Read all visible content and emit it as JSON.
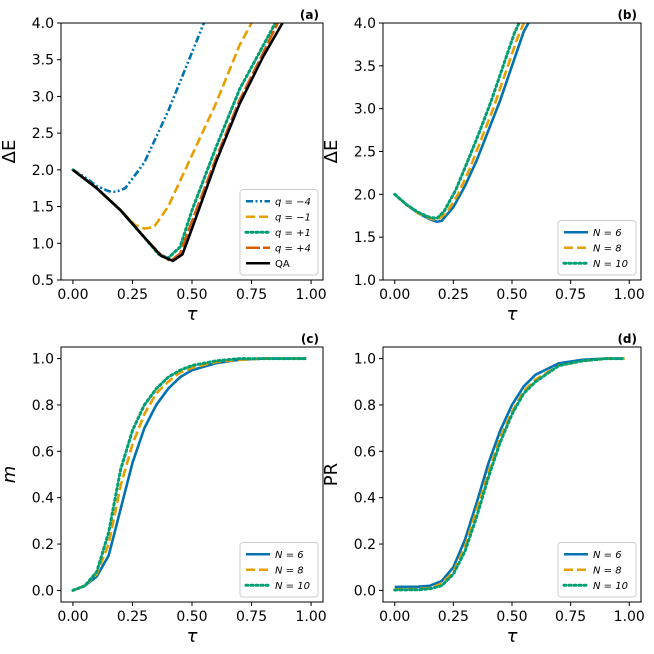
{
  "figure": {
    "colors": {
      "blue": "#0072b2",
      "orange": "#e69f00",
      "green": "#009e73",
      "vermillion": "#d55e00",
      "black": "#000000"
    }
  },
  "chart_data": [
    {
      "panel": "(a)",
      "type": "line",
      "xlabel": "τ",
      "ylabel": "ΔE",
      "xlim": [
        -0.05,
        1.05
      ],
      "ylim": [
        0.5,
        4.0
      ],
      "xticks": [
        "0.00",
        "0.25",
        "0.50",
        "0.75",
        "1.00"
      ],
      "yticks": [
        "0.5",
        "1.0",
        "1.5",
        "2.0",
        "2.5",
        "3.0",
        "3.5",
        "4.0"
      ],
      "legend_position": "lower-right",
      "series": [
        {
          "name": "q = −4",
          "color": "#0072b2",
          "dash": "dashdotdot",
          "x": [
            0.0,
            0.05,
            0.1,
            0.15,
            0.18,
            0.22,
            0.3,
            0.4,
            0.5,
            0.55
          ],
          "y": [
            2.0,
            1.9,
            1.78,
            1.71,
            1.7,
            1.75,
            2.1,
            2.8,
            3.6,
            4.0
          ]
        },
        {
          "name": "q = −1",
          "color": "#e69f00",
          "dash": "dashed",
          "x": [
            0.0,
            0.1,
            0.2,
            0.26,
            0.3,
            0.34,
            0.4,
            0.5,
            0.6,
            0.7,
            0.75
          ],
          "y": [
            2.0,
            1.75,
            1.45,
            1.25,
            1.2,
            1.22,
            1.5,
            2.2,
            2.9,
            3.7,
            4.0
          ]
        },
        {
          "name": "q = +1",
          "color": "#009e73",
          "dash": "dotted",
          "x": [
            0.0,
            0.1,
            0.2,
            0.3,
            0.36,
            0.4,
            0.45,
            0.5,
            0.6,
            0.7,
            0.8,
            0.85
          ],
          "y": [
            2.0,
            1.75,
            1.45,
            1.08,
            0.85,
            0.8,
            0.95,
            1.45,
            2.3,
            3.1,
            3.7,
            4.0
          ]
        },
        {
          "name": "q = +4",
          "color": "#d55e00",
          "dash": "longdash",
          "x": [
            0.0,
            0.1,
            0.2,
            0.3,
            0.37,
            0.41,
            0.45,
            0.5,
            0.6,
            0.7,
            0.8,
            0.86
          ],
          "y": [
            2.0,
            1.75,
            1.45,
            1.08,
            0.84,
            0.76,
            0.86,
            1.3,
            2.15,
            2.95,
            3.6,
            4.0
          ]
        },
        {
          "name": "QA",
          "color": "#000000",
          "dash": "solid",
          "x": [
            0.0,
            0.1,
            0.2,
            0.3,
            0.37,
            0.42,
            0.46,
            0.5,
            0.6,
            0.7,
            0.8,
            0.88
          ],
          "y": [
            2.0,
            1.75,
            1.45,
            1.08,
            0.83,
            0.76,
            0.85,
            1.2,
            2.1,
            2.9,
            3.55,
            4.0
          ]
        }
      ]
    },
    {
      "panel": "(b)",
      "type": "line",
      "xlabel": "τ",
      "ylabel": "ΔE",
      "xlim": [
        -0.05,
        1.05
      ],
      "ylim": [
        1.0,
        4.0
      ],
      "xticks": [
        "0.00",
        "0.25",
        "0.50",
        "0.75",
        "1.00"
      ],
      "yticks": [
        "1.0",
        "1.5",
        "2.0",
        "2.5",
        "3.0",
        "3.5",
        "4.0"
      ],
      "legend_position": "lower-right",
      "series": [
        {
          "name": "N = 6",
          "color": "#0072b2",
          "dash": "solid",
          "x": [
            0.0,
            0.05,
            0.1,
            0.15,
            0.18,
            0.2,
            0.25,
            0.3,
            0.35,
            0.4,
            0.45,
            0.5,
            0.55,
            0.57
          ],
          "y": [
            2.0,
            1.88,
            1.78,
            1.71,
            1.68,
            1.69,
            1.85,
            2.1,
            2.4,
            2.75,
            3.1,
            3.5,
            3.9,
            4.0
          ]
        },
        {
          "name": "N = 8",
          "color": "#e69f00",
          "dash": "dashed",
          "x": [
            0.0,
            0.05,
            0.1,
            0.15,
            0.18,
            0.22,
            0.27,
            0.32,
            0.37,
            0.42,
            0.47,
            0.52,
            0.55
          ],
          "y": [
            2.0,
            1.88,
            1.78,
            1.72,
            1.7,
            1.78,
            2.0,
            2.3,
            2.65,
            3.0,
            3.4,
            3.8,
            4.0
          ]
        },
        {
          "name": "N = 10",
          "color": "#009e73",
          "dash": "dotted",
          "x": [
            0.0,
            0.05,
            0.1,
            0.15,
            0.18,
            0.21,
            0.26,
            0.31,
            0.36,
            0.41,
            0.46,
            0.51,
            0.53
          ],
          "y": [
            2.0,
            1.88,
            1.79,
            1.73,
            1.72,
            1.8,
            2.05,
            2.38,
            2.72,
            3.08,
            3.48,
            3.88,
            4.0
          ]
        }
      ]
    },
    {
      "panel": "(c)",
      "type": "line",
      "xlabel": "τ",
      "ylabel": "m",
      "xlim": [
        -0.05,
        1.05
      ],
      "ylim": [
        -0.05,
        1.05
      ],
      "xticks": [
        "0.00",
        "0.25",
        "0.50",
        "0.75",
        "1.00"
      ],
      "yticks": [
        "0.0",
        "0.2",
        "0.4",
        "0.6",
        "0.8",
        "1.0"
      ],
      "legend_position": "lower-right",
      "series": [
        {
          "name": "N = 6",
          "color": "#0072b2",
          "dash": "solid",
          "x": [
            0.0,
            0.05,
            0.1,
            0.15,
            0.2,
            0.25,
            0.3,
            0.35,
            0.4,
            0.45,
            0.5,
            0.6,
            0.7,
            0.8,
            0.9,
            0.98
          ],
          "y": [
            0.0,
            0.02,
            0.06,
            0.15,
            0.35,
            0.55,
            0.7,
            0.8,
            0.87,
            0.92,
            0.95,
            0.98,
            0.995,
            1.0,
            1.0,
            1.0
          ]
        },
        {
          "name": "N = 8",
          "color": "#e69f00",
          "dash": "dashed",
          "x": [
            0.0,
            0.05,
            0.1,
            0.15,
            0.2,
            0.25,
            0.3,
            0.35,
            0.4,
            0.45,
            0.5,
            0.6,
            0.7,
            0.8,
            0.9,
            0.98
          ],
          "y": [
            0.0,
            0.02,
            0.07,
            0.2,
            0.45,
            0.63,
            0.76,
            0.85,
            0.9,
            0.94,
            0.96,
            0.985,
            0.995,
            1.0,
            1.0,
            1.0
          ]
        },
        {
          "name": "N = 10",
          "color": "#009e73",
          "dash": "dotted",
          "x": [
            0.0,
            0.05,
            0.1,
            0.15,
            0.2,
            0.25,
            0.3,
            0.35,
            0.4,
            0.45,
            0.5,
            0.6,
            0.7,
            0.8,
            0.9,
            0.98
          ],
          "y": [
            0.0,
            0.02,
            0.08,
            0.25,
            0.52,
            0.69,
            0.8,
            0.87,
            0.92,
            0.95,
            0.97,
            0.99,
            1.0,
            1.0,
            1.0,
            1.0
          ]
        }
      ]
    },
    {
      "panel": "(d)",
      "type": "line",
      "xlabel": "τ",
      "ylabel": "PR",
      "xlim": [
        -0.05,
        1.05
      ],
      "ylim": [
        -0.05,
        1.05
      ],
      "xticks": [
        "0.00",
        "0.25",
        "0.50",
        "0.75",
        "1.00"
      ],
      "yticks": [
        "0.0",
        "0.2",
        "0.4",
        "0.6",
        "0.8",
        "1.0"
      ],
      "legend_position": "lower-right",
      "series": [
        {
          "name": "N = 6",
          "color": "#0072b2",
          "dash": "solid",
          "x": [
            0.0,
            0.1,
            0.15,
            0.2,
            0.25,
            0.3,
            0.35,
            0.4,
            0.45,
            0.5,
            0.55,
            0.6,
            0.7,
            0.8,
            0.9,
            0.98
          ],
          "y": [
            0.015,
            0.016,
            0.02,
            0.04,
            0.1,
            0.22,
            0.38,
            0.55,
            0.69,
            0.8,
            0.88,
            0.93,
            0.98,
            0.995,
            1.0,
            1.0
          ]
        },
        {
          "name": "N = 8",
          "color": "#e69f00",
          "dash": "dashed",
          "x": [
            0.0,
            0.1,
            0.15,
            0.2,
            0.25,
            0.3,
            0.35,
            0.4,
            0.45,
            0.5,
            0.55,
            0.6,
            0.7,
            0.8,
            0.9,
            0.98
          ],
          "y": [
            0.005,
            0.006,
            0.01,
            0.03,
            0.08,
            0.19,
            0.35,
            0.51,
            0.66,
            0.77,
            0.86,
            0.91,
            0.97,
            0.99,
            1.0,
            1.0
          ]
        },
        {
          "name": "N = 10",
          "color": "#009e73",
          "dash": "dotted",
          "x": [
            0.0,
            0.1,
            0.15,
            0.2,
            0.25,
            0.3,
            0.35,
            0.4,
            0.45,
            0.5,
            0.55,
            0.6,
            0.7,
            0.8,
            0.9,
            0.98
          ],
          "y": [
            0.002,
            0.003,
            0.007,
            0.02,
            0.07,
            0.17,
            0.32,
            0.49,
            0.64,
            0.76,
            0.85,
            0.9,
            0.97,
            0.99,
            1.0,
            1.0
          ]
        }
      ]
    }
  ]
}
